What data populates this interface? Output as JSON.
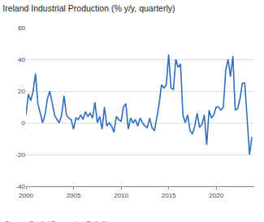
{
  "chart_data": {
    "type": "line",
    "title": "Ireland Industrial Production (% y/y, quarterly)",
    "annotations": [
      "Source: Capital Economics, Refinitiv"
    ],
    "x": [
      2000,
      2000.25,
      2000.5,
      2000.75,
      2001,
      2001.25,
      2001.5,
      2001.75,
      2002,
      2002.25,
      2002.5,
      2002.75,
      2003,
      2003.25,
      2003.5,
      2003.75,
      2004,
      2004.25,
      2004.5,
      2004.75,
      2005,
      2005.25,
      2005.5,
      2005.75,
      2006,
      2006.25,
      2006.5,
      2006.75,
      2007,
      2007.25,
      2007.5,
      2007.75,
      2008,
      2008.25,
      2008.5,
      2008.75,
      2009,
      2009.25,
      2009.5,
      2009.75,
      2010,
      2010.25,
      2010.5,
      2010.75,
      2011,
      2011.25,
      2011.5,
      2011.75,
      2012,
      2012.25,
      2012.5,
      2012.75,
      2013,
      2013.25,
      2013.5,
      2013.75,
      2014,
      2014.25,
      2014.5,
      2014.75,
      2015,
      2015.25,
      2015.5,
      2015.75,
      2016,
      2016.25,
      2016.5,
      2016.75,
      2017,
      2017.25,
      2017.5,
      2017.75,
      2018,
      2018.25,
      2018.5,
      2018.75,
      2019,
      2019.25,
      2019.5,
      2019.75,
      2020,
      2020.25,
      2020.5,
      2020.75,
      2021,
      2021.25,
      2021.5,
      2021.75,
      2022,
      2022.25,
      2022.5,
      2022.75,
      2023,
      2023.25,
      2023.5,
      2023.75
    ],
    "values": [
      5,
      18,
      14,
      20,
      31,
      12,
      6,
      0,
      5,
      15,
      20,
      12,
      5,
      2,
      0,
      5,
      17,
      5,
      3,
      2,
      -4,
      3,
      2,
      5,
      2,
      7,
      4,
      6,
      3,
      13,
      0,
      4,
      -4,
      10,
      -2,
      0,
      -2,
      -6,
      4,
      2,
      1,
      10,
      12,
      -4,
      3,
      0,
      2,
      -2,
      3,
      0,
      -2,
      -3,
      3,
      -3,
      -5,
      3,
      12,
      24,
      22,
      24,
      43,
      22,
      21,
      40,
      35,
      37,
      5,
      0,
      5,
      -5,
      -7,
      -2,
      6,
      -3,
      -1,
      5,
      -14,
      8,
      3,
      5,
      10,
      10,
      8,
      10,
      33,
      40,
      29,
      42,
      8,
      9,
      15,
      25,
      25,
      3,
      -20,
      -9
    ],
    "color": "#2f6fc0",
    "xlim": [
      2000,
      2024
    ],
    "xticks": [
      2000,
      2005,
      2010,
      2015,
      2020
    ],
    "ylim": [
      -40,
      60
    ],
    "yticks": [
      -40,
      -20,
      0,
      20,
      40,
      60
    ],
    "grid": true
  }
}
